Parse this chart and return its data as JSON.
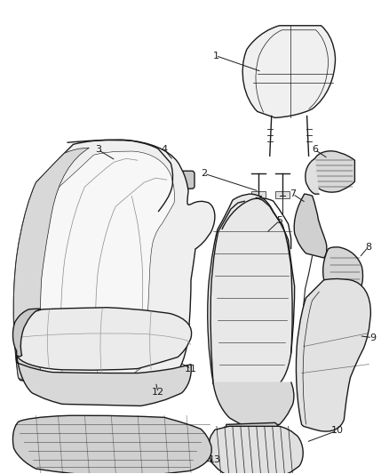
{
  "background_color": "#ffffff",
  "fig_width": 4.38,
  "fig_height": 5.33,
  "dpi": 100,
  "line_color": "#1a1a1a",
  "label_fontsize": 8,
  "lw_main": 1.0,
  "lw_detail": 0.5
}
